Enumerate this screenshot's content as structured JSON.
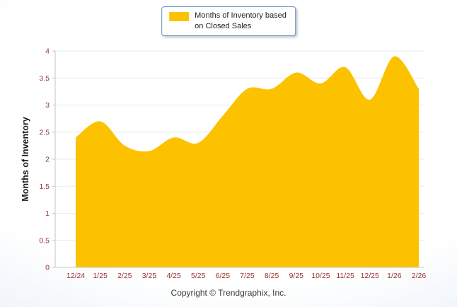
{
  "legend": {
    "lines": [
      "Months of Inventory based",
      "on Closed Sales"
    ]
  },
  "footer": {
    "copyright": "Copyright © Trendgraphix, Inc."
  },
  "colors": {
    "area": "#FCC200",
    "tick_label": "#993333",
    "axis": "#C6C6C6",
    "grid": "#E9E9E9",
    "legend_border": "#6C8EBF",
    "ylabel_text": "#1A1A1A"
  },
  "chart_data": {
    "type": "area",
    "x": [
      "12/24",
      "1/25",
      "2/25",
      "3/25",
      "4/25",
      "5/25",
      "6/25",
      "7/25",
      "8/25",
      "9/25",
      "10/25",
      "11/25",
      "12/25",
      "1/26",
      "2/26"
    ],
    "series": [
      {
        "name": "Months of Inventory based on Closed Sales",
        "values": [
          2.4,
          2.7,
          2.25,
          2.15,
          2.4,
          2.3,
          2.8,
          3.3,
          3.3,
          3.6,
          3.4,
          3.7,
          3.1,
          3.9,
          3.3
        ]
      }
    ],
    "title": "",
    "xlabel": "",
    "ylabel": "Months of Inventory",
    "ylim": [
      0,
      4
    ],
    "ytick_step": 0.5,
    "grid": true,
    "legend_position": "top"
  }
}
